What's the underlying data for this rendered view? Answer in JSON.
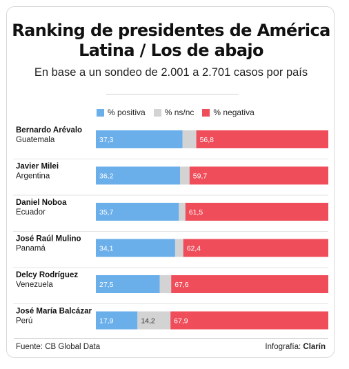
{
  "chart_data": {
    "type": "bar",
    "stacked": true,
    "orientation": "horizontal",
    "title": "Ranking de presidentes de América Latina / Los de abajo",
    "subtitle": "En base a un sondeo de 2.001 a 2.701 casos por país",
    "categories": [
      {
        "name": "Bernardo Arévalo",
        "country": "Guatemala"
      },
      {
        "name": "Javier Milei",
        "country": "Argentina"
      },
      {
        "name": "Daniel Noboa",
        "country": "Ecuador"
      },
      {
        "name": "José Raúl Mulino",
        "country": "Panamá"
      },
      {
        "name": "Delcy Rodríguez",
        "country": "Venezuela"
      },
      {
        "name": "José María Balcázar",
        "country": "Perú"
      }
    ],
    "series": [
      {
        "name": "% positiva",
        "color": "#6aaeea",
        "values": [
          37.3,
          36.2,
          35.7,
          34.1,
          27.5,
          17.9
        ],
        "labels": [
          "37,3",
          "36,2",
          "35,7",
          "34,1",
          "27,5",
          "17,9"
        ]
      },
      {
        "name": "% ns/nc",
        "color": "#d3d3d3",
        "values": [
          5.9,
          4.1,
          2.8,
          3.5,
          4.9,
          14.2
        ],
        "labels": [
          "",
          "",
          "",
          "",
          "",
          "14,2"
        ]
      },
      {
        "name": "% negativa",
        "color": "#ef4d5a",
        "values": [
          56.8,
          59.7,
          61.5,
          62.4,
          67.6,
          67.9
        ],
        "labels": [
          "56,8",
          "59,7",
          "61,5",
          "62,4",
          "67,6",
          "67,9"
        ]
      }
    ],
    "xlim": [
      0,
      100
    ],
    "legend_position": "top",
    "grid": false
  },
  "footer": {
    "source": "Fuente: CB Global Data",
    "credit_prefix": "Infografía:",
    "credit_brand": "Clarín"
  }
}
